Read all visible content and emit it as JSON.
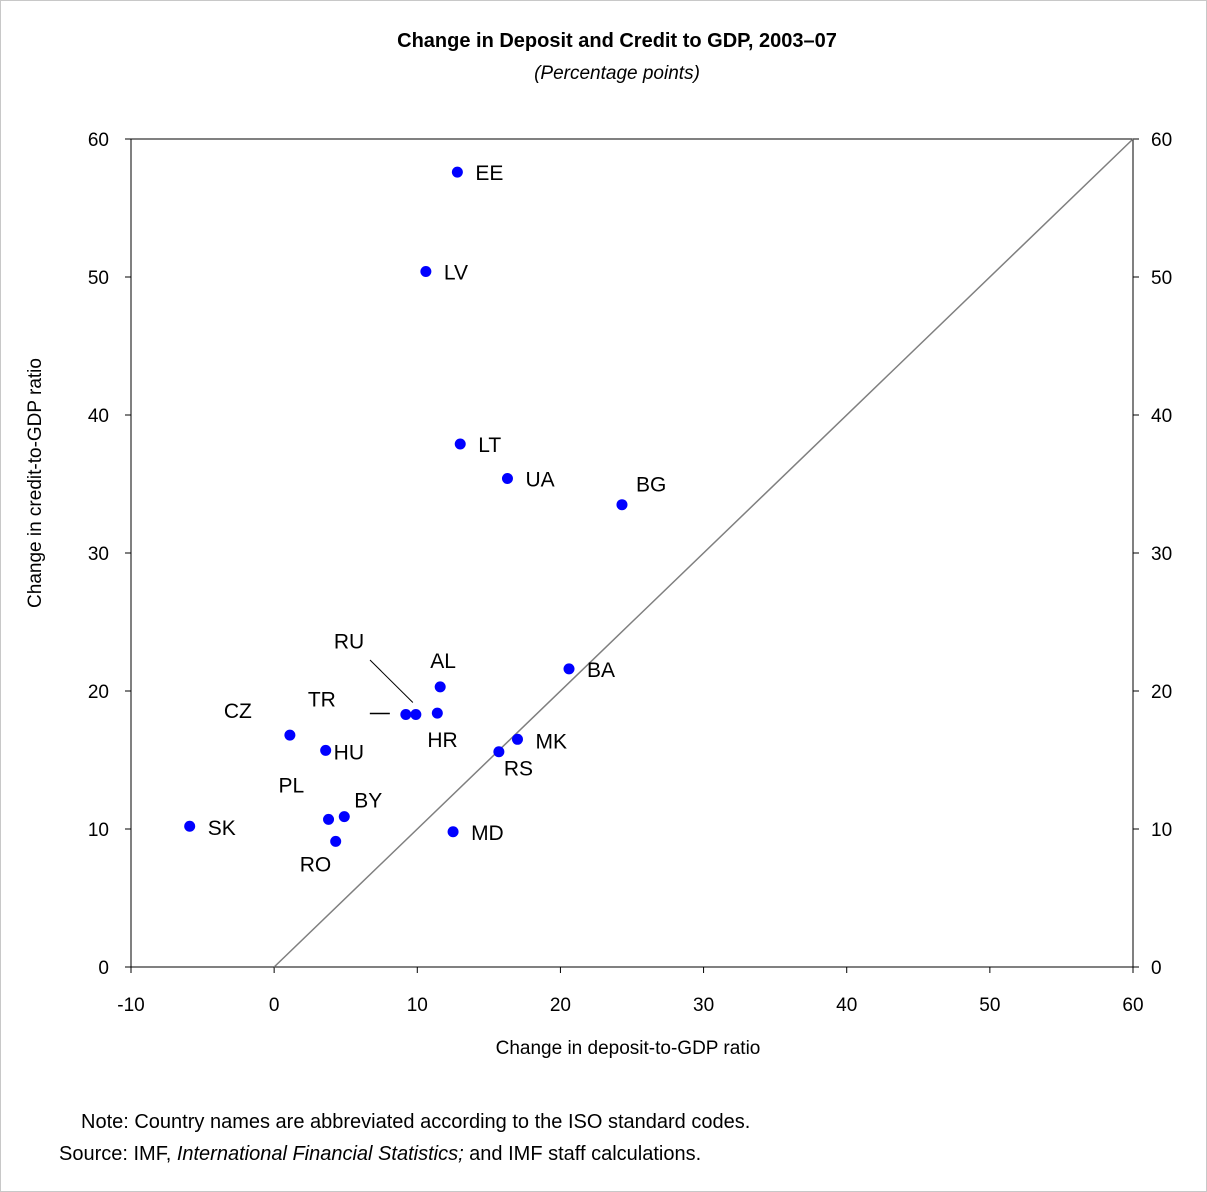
{
  "chart_data": {
    "type": "scatter",
    "title": "Change in Deposit and Credit to GDP, 2003–07",
    "subtitle": "(Percentage points)",
    "xlabel": "Change in deposit-to-GDP ratio",
    "ylabel": "Change in credit-to-GDP ratio",
    "xlim": [
      -10,
      60
    ],
    "ylim": [
      0,
      60
    ],
    "x_ticks": [
      "-10",
      "0",
      "10",
      "20",
      "30",
      "40",
      "50",
      "60"
    ],
    "y_ticks": [
      "0",
      "10",
      "20",
      "30",
      "40",
      "50",
      "60"
    ],
    "y2_ticks": [
      "0",
      "10",
      "20",
      "30",
      "40",
      "50",
      "60"
    ],
    "reference_line": "45-degree line (y = x)",
    "marker_color": "#0000ff",
    "points": [
      {
        "label": "EE",
        "x": 12.8,
        "y": 57.6
      },
      {
        "label": "LV",
        "x": 10.6,
        "y": 50.4
      },
      {
        "label": "LT",
        "x": 13.0,
        "y": 37.9
      },
      {
        "label": "UA",
        "x": 16.3,
        "y": 35.4
      },
      {
        "label": "BG",
        "x": 24.3,
        "y": 33.5
      },
      {
        "label": "BA",
        "x": 20.6,
        "y": 21.6
      },
      {
        "label": "AL",
        "x": 11.6,
        "y": 20.3
      },
      {
        "label": "RU",
        "x": 9.9,
        "y": 18.3
      },
      {
        "label": "TR",
        "x": 9.2,
        "y": 18.3
      },
      {
        "label": "HR",
        "x": 11.4,
        "y": 18.4
      },
      {
        "label": "CZ",
        "x": 1.1,
        "y": 16.8
      },
      {
        "label": "HU",
        "x": 3.6,
        "y": 15.7
      },
      {
        "label": "MK",
        "x": 17.0,
        "y": 16.5
      },
      {
        "label": "RS",
        "x": 15.7,
        "y": 15.6
      },
      {
        "label": "PL",
        "x": 3.8,
        "y": 10.7
      },
      {
        "label": "BY",
        "x": 4.9,
        "y": 10.9
      },
      {
        "label": "RO",
        "x": 4.3,
        "y": 9.1
      },
      {
        "label": "SK",
        "x": -5.9,
        "y": 10.2
      },
      {
        "label": "MD",
        "x": 12.5,
        "y": 9.8
      }
    ]
  },
  "footnote": {
    "note": "Note: Country names are abbreviated according to the ISO standard codes.",
    "source_prefix": "Source: IMF, ",
    "source_italic": "International Financial Statistics;",
    "source_suffix": " and IMF staff calculations."
  }
}
